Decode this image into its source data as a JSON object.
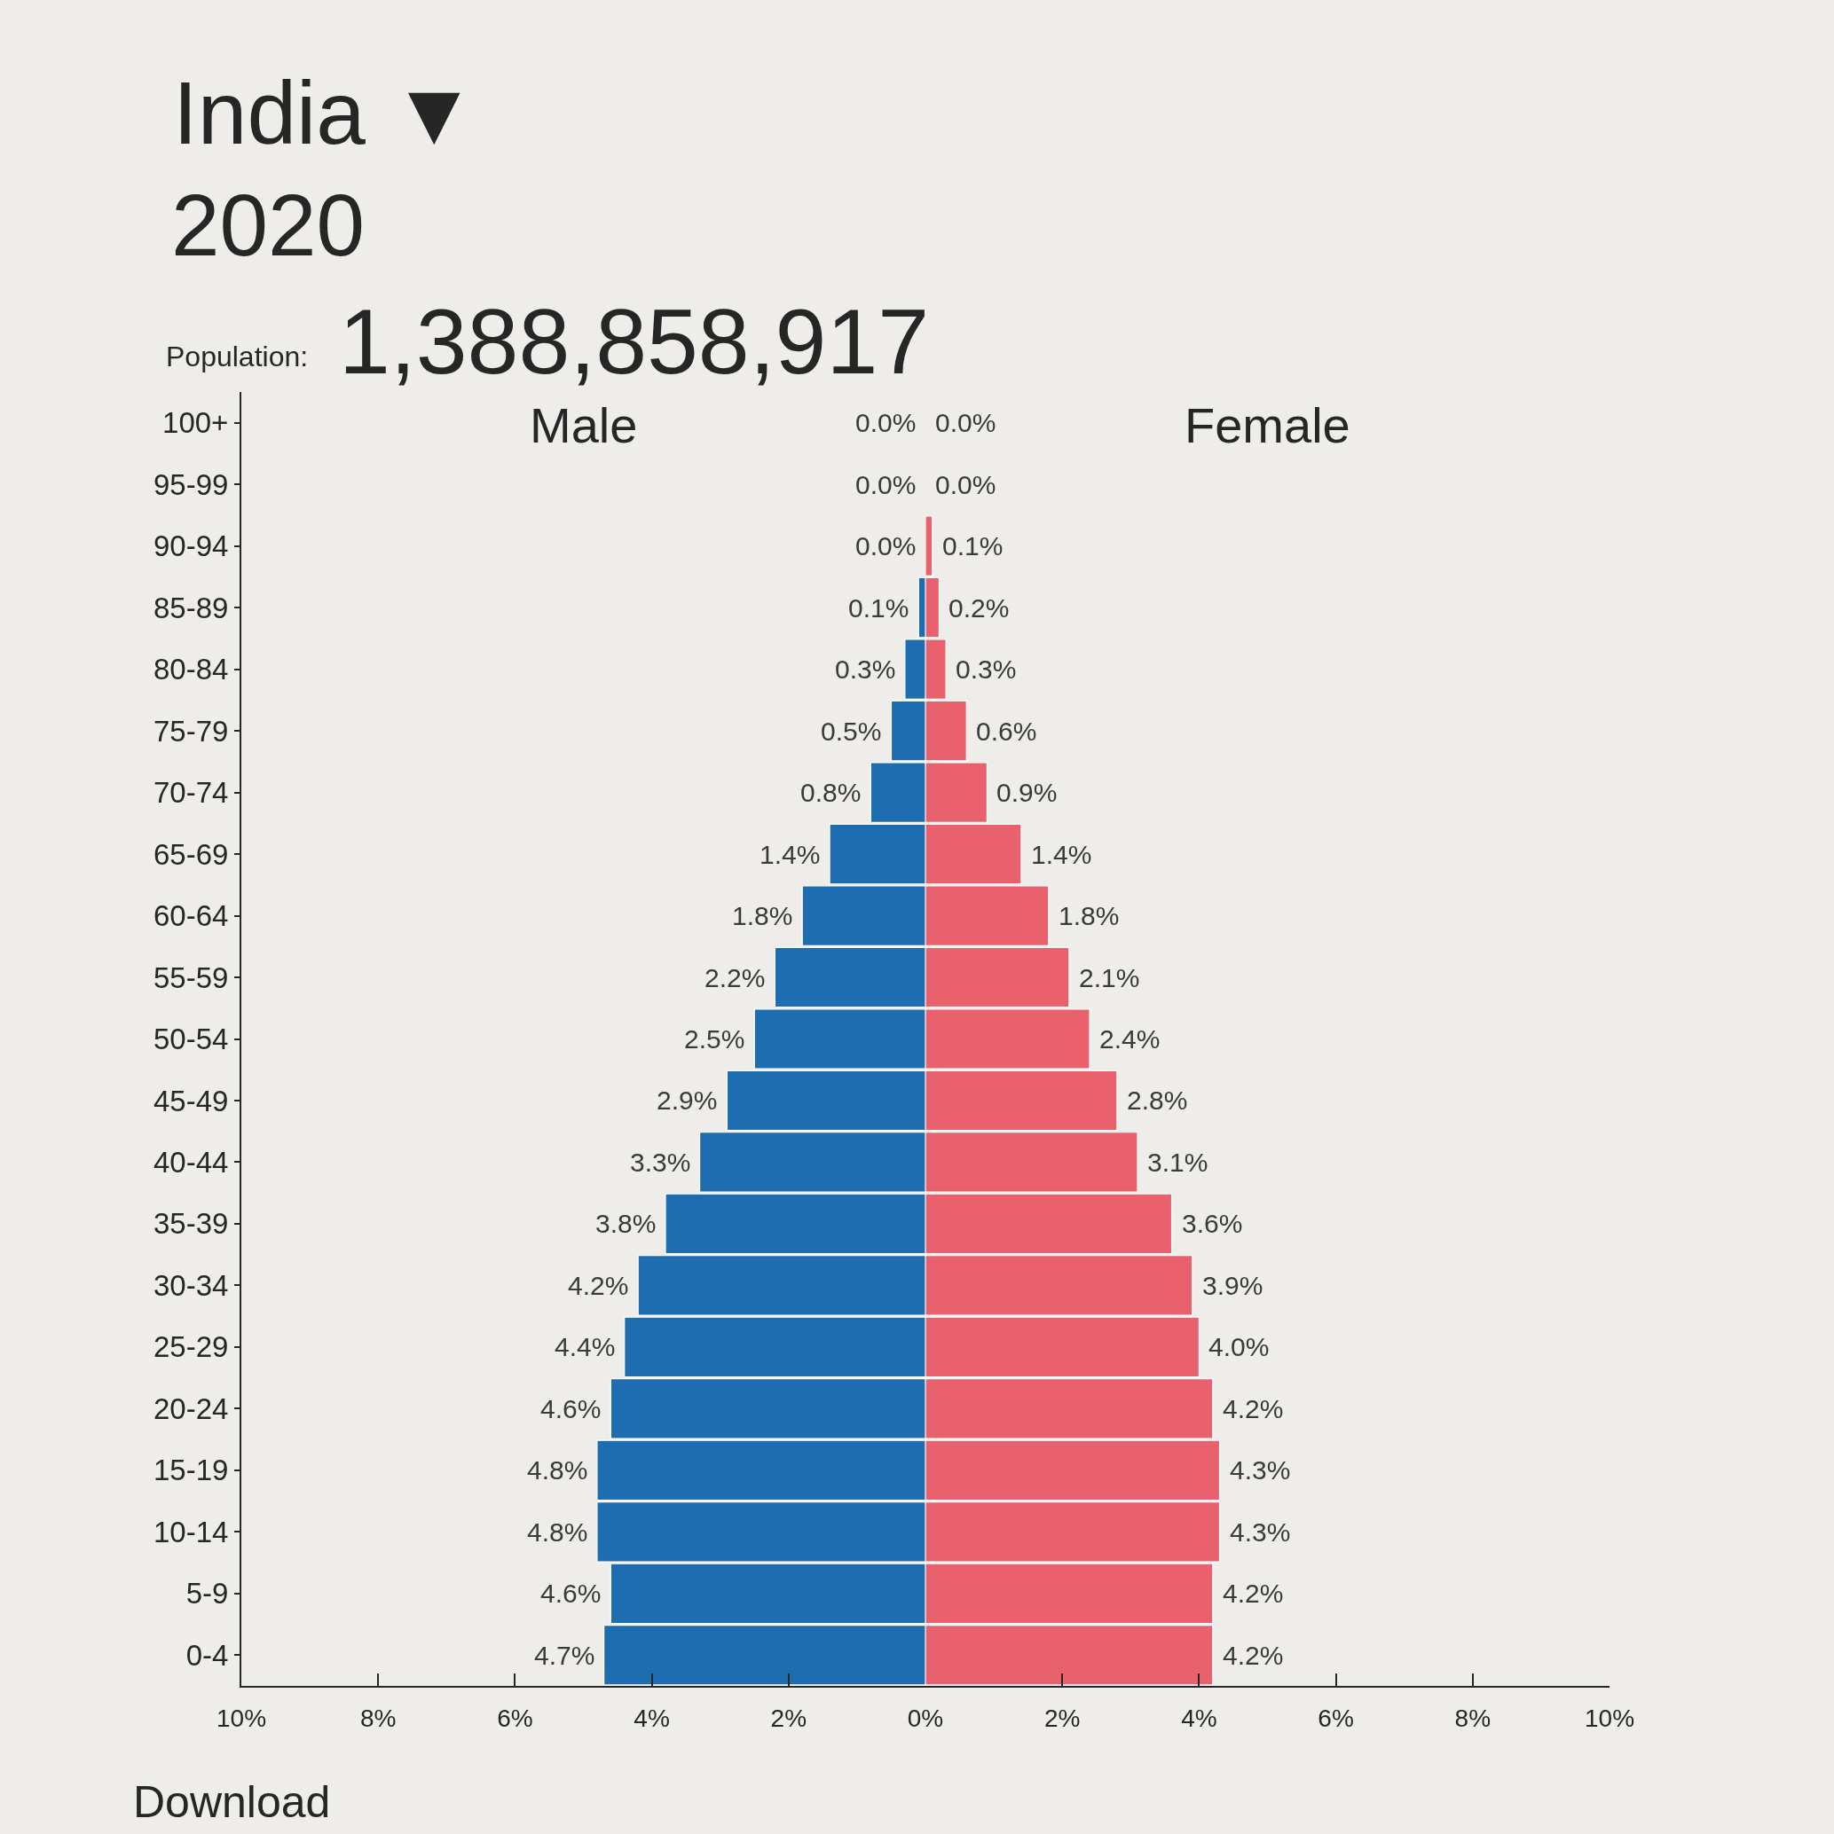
{
  "chart_data": [
    {
      "type": "other",
      "title": "India ▼",
      "subtitle": "2020",
      "annotations": [
        "Population:",
        "1,388,858,917",
        "Download"
      ]
    },
    {
      "type": "bar",
      "orientation": "horizontal",
      "title": "Male",
      "categories": [
        "100+",
        "95-99",
        "90-94",
        "85-89",
        "80-84",
        "75-79",
        "70-74",
        "65-69",
        "60-64",
        "55-59",
        "50-54",
        "45-49",
        "40-44",
        "35-39",
        "30-34",
        "25-29",
        "20-24",
        "15-19",
        "10-14",
        "5-9",
        "0-4"
      ],
      "series": [
        {
          "color": "#1f6db1",
          "values": [
            0,
            0,
            0,
            0.1,
            0.3,
            0.5,
            0.8,
            1.4,
            1.8,
            2.2,
            2.5,
            2.9,
            3.3,
            3.8,
            4.2,
            4.4,
            4.6,
            4.8,
            4.8,
            4.6,
            4.7
          ],
          "value_labels": [
            "0.0%",
            "0.0%",
            "0.0%",
            "0.1%",
            "0.3%",
            "0.5%",
            "0.8%",
            "1.4%",
            "1.8%",
            "2.2%",
            "2.5%",
            "2.9%",
            "3.3%",
            "3.8%",
            "4.2%",
            "4.4%",
            "4.6%",
            "4.8%",
            "4.8%",
            "4.6%",
            "4.7%"
          ]
        }
      ],
      "xlim": [
        10,
        0
      ],
      "xticks": [
        {
          "value": 10,
          "label": "10%"
        },
        {
          "value": 8,
          "label": "8%"
        },
        {
          "value": 6,
          "label": "6%"
        },
        {
          "value": 4,
          "label": "4%"
        },
        {
          "value": 2,
          "label": "2%"
        },
        {
          "value": 0,
          "label": "0%"
        }
      ]
    },
    {
      "type": "bar",
      "orientation": "horizontal",
      "title": "Female",
      "categories": [
        "100+",
        "95-99",
        "90-94",
        "85-89",
        "80-84",
        "75-79",
        "70-74",
        "65-69",
        "60-64",
        "55-59",
        "50-54",
        "45-49",
        "40-44",
        "35-39",
        "30-34",
        "25-29",
        "20-24",
        "15-19",
        "10-14",
        "5-9",
        "0-4"
      ],
      "series": [
        {
          "color": "#e9616d",
          "values": [
            0,
            0,
            0.1,
            0.2,
            0.3,
            0.6,
            0.9,
            1.4,
            1.8,
            2.1,
            2.4,
            2.8,
            3.1,
            3.6,
            3.9,
            4.0,
            4.2,
            4.3,
            4.3,
            4.2,
            4.2
          ],
          "value_labels": [
            "0.0%",
            "0.0%",
            "0.1%",
            "0.2%",
            "0.3%",
            "0.6%",
            "0.9%",
            "1.4%",
            "1.8%",
            "2.1%",
            "2.4%",
            "2.8%",
            "3.1%",
            "3.6%",
            "3.9%",
            "4.0%",
            "4.2%",
            "4.3%",
            "4.3%",
            "4.2%",
            "4.2%"
          ]
        }
      ],
      "xlim": [
        0,
        10
      ],
      "xticks": [
        {
          "value": 2,
          "label": "2%"
        },
        {
          "value": 4,
          "label": "4%"
        },
        {
          "value": 6,
          "label": "6%"
        },
        {
          "value": 8,
          "label": "8%"
        },
        {
          "value": 10,
          "label": "10%"
        }
      ],
      "tick_labels": "x"
    }
  ]
}
